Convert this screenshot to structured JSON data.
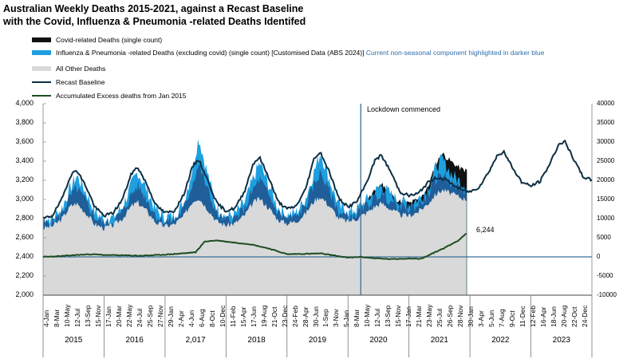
{
  "title_line1": "Australian Weekly Deaths 2015-2021, against a Recast Baseline",
  "title_line2": "with the Covid, Influenza & Pneumonia -related Deaths Identifed",
  "legend": {
    "covid": "Covid-related Deaths (single count)",
    "flu_main": "Influenza & Pneumonia -related Deaths (excluding covid) (single count) [Customised Data (ABS 2024)]",
    "flu_highlight": "Current non-seasonal component highlighted in darker blue",
    "other": "All Other Deaths",
    "baseline": "Recast Baseline",
    "excess": "Accumulated Excess deaths from Jan 2015"
  },
  "colors": {
    "covid": "#111111",
    "flu_light": "#1e9fe0",
    "flu_dark": "#1f5e99",
    "other": "#d9d9d9",
    "baseline": "#0c2e44",
    "excess": "#1e4d22",
    "lockdown_line": "#3a6f99",
    "zero_line": "#3a6f99"
  },
  "annotations": {
    "lockdown": "Lockdown commenced",
    "excess_end": "6,244"
  },
  "chart_data": {
    "type": "area",
    "y_axis": {
      "ylim": [
        2000,
        4000
      ],
      "ticks": [
        "2,000",
        "2,200",
        "2,400",
        "2,600",
        "2,800",
        "3,000",
        "3,200",
        "3,400",
        "3,600",
        "3,800",
        "4,000"
      ]
    },
    "y2_axis": {
      "ylim": [
        -10000,
        40000
      ],
      "ticks": [
        "-10000",
        "-5000",
        "0",
        "5000",
        "10000",
        "15000",
        "20000",
        "25000",
        "30000",
        "35000",
        "40000"
      ]
    },
    "x_tick_labels": [
      "4-Jan",
      "8-Mar",
      "10-May",
      "12-Jul",
      "13-Sep",
      "15-Nov",
      "17-Jan",
      "20-Mar",
      "22-May",
      "24-Jul",
      "25-Sep",
      "27-Nov",
      "29-Jan",
      "2-Apr",
      "4-Jun",
      "6-Aug",
      "8-Oct",
      "10-Dec",
      "11-Feb",
      "15-Apr",
      "17-Jun",
      "19-Aug",
      "21-Oct",
      "23-Dec",
      "24-Feb",
      "28-Apr",
      "30-Jun",
      "1-Sep",
      "3-Nov",
      "5-Jan",
      "8-Mar",
      "10-May",
      "12-Jul",
      "13-Sep",
      "15-Nov",
      "17-Jan",
      "21-Mar",
      "23-May",
      "25-Jul",
      "26-Sep",
      "28-Nov",
      "30-Jan",
      "3-Apr",
      "5-Jun",
      "7-Aug",
      "9-Oct",
      "11-Dec",
      "12-Feb",
      "16-Apr",
      "18-Jun",
      "20-Aug",
      "22-Oct",
      "24-Dec"
    ],
    "year_labels": [
      "2015",
      "2016",
      "2,017",
      "2018",
      "2019",
      "2020",
      "2021",
      "2022",
      "2023"
    ],
    "lockdown_year": 2020.21,
    "series": [
      {
        "name": "All Other Deaths",
        "kind": "area",
        "points": [
          [
            2015.0,
            2700
          ],
          [
            2015.15,
            2720
          ],
          [
            2015.3,
            2790
          ],
          [
            2015.45,
            2930
          ],
          [
            2015.55,
            2960
          ],
          [
            2015.7,
            2860
          ],
          [
            2015.85,
            2740
          ],
          [
            2016.0,
            2700
          ],
          [
            2016.15,
            2730
          ],
          [
            2016.3,
            2800
          ],
          [
            2016.45,
            2930
          ],
          [
            2016.55,
            2970
          ],
          [
            2016.7,
            2880
          ],
          [
            2016.85,
            2760
          ],
          [
            2017.0,
            2720
          ],
          [
            2017.15,
            2740
          ],
          [
            2017.3,
            2820
          ],
          [
            2017.45,
            2980
          ],
          [
            2017.55,
            3020
          ],
          [
            2017.7,
            2900
          ],
          [
            2017.85,
            2770
          ],
          [
            2018.0,
            2730
          ],
          [
            2018.15,
            2750
          ],
          [
            2018.3,
            2830
          ],
          [
            2018.45,
            2970
          ],
          [
            2018.55,
            3010
          ],
          [
            2018.7,
            2910
          ],
          [
            2018.85,
            2790
          ],
          [
            2019.0,
            2750
          ],
          [
            2019.15,
            2770
          ],
          [
            2019.3,
            2850
          ],
          [
            2019.45,
            2990
          ],
          [
            2019.55,
            3030
          ],
          [
            2019.7,
            2930
          ],
          [
            2019.85,
            2800
          ],
          [
            2020.0,
            2770
          ],
          [
            2020.15,
            2800
          ],
          [
            2020.3,
            2860
          ],
          [
            2020.45,
            2930
          ],
          [
            2020.55,
            2960
          ],
          [
            2020.7,
            2900
          ],
          [
            2020.85,
            2840
          ],
          [
            2021.0,
            2830
          ],
          [
            2021.15,
            2870
          ],
          [
            2021.3,
            2950
          ],
          [
            2021.45,
            3060
          ],
          [
            2021.55,
            3100
          ],
          [
            2021.7,
            3060
          ],
          [
            2021.85,
            3020
          ],
          [
            2021.95,
            3000
          ]
        ]
      },
      {
        "name": "Influenza & Pneumonia -related Deaths (excluding covid) (single count)",
        "kind": "area",
        "points": [
          [
            2015.0,
            2790
          ],
          [
            2015.15,
            2800
          ],
          [
            2015.3,
            2900
          ],
          [
            2015.45,
            3120
          ],
          [
            2015.55,
            3250
          ],
          [
            2015.7,
            3080
          ],
          [
            2015.85,
            2870
          ],
          [
            2016.0,
            2790
          ],
          [
            2016.15,
            2810
          ],
          [
            2016.3,
            2920
          ],
          [
            2016.45,
            3150
          ],
          [
            2016.55,
            3290
          ],
          [
            2016.7,
            3100
          ],
          [
            2016.85,
            2890
          ],
          [
            2017.0,
            2810
          ],
          [
            2017.15,
            2830
          ],
          [
            2017.3,
            2950
          ],
          [
            2017.45,
            3320
          ],
          [
            2017.55,
            3650
          ],
          [
            2017.7,
            3260
          ],
          [
            2017.85,
            2900
          ],
          [
            2018.0,
            2820
          ],
          [
            2018.15,
            2850
          ],
          [
            2018.3,
            2960
          ],
          [
            2018.45,
            3220
          ],
          [
            2018.55,
            3380
          ],
          [
            2018.7,
            3150
          ],
          [
            2018.85,
            2920
          ],
          [
            2019.0,
            2840
          ],
          [
            2019.15,
            2860
          ],
          [
            2019.3,
            3000
          ],
          [
            2019.45,
            3300
          ],
          [
            2019.55,
            3490
          ],
          [
            2019.7,
            3200
          ],
          [
            2019.85,
            2930
          ],
          [
            2020.0,
            2860
          ],
          [
            2020.15,
            2900
          ],
          [
            2020.3,
            2990
          ],
          [
            2020.45,
            3080
          ],
          [
            2020.55,
            3150
          ],
          [
            2020.7,
            3050
          ],
          [
            2020.85,
            2980
          ],
          [
            2021.0,
            2960
          ],
          [
            2021.15,
            3000
          ],
          [
            2021.3,
            3100
          ],
          [
            2021.45,
            3350
          ],
          [
            2021.55,
            3420
          ],
          [
            2021.7,
            3260
          ],
          [
            2021.85,
            3180
          ],
          [
            2021.95,
            3150
          ]
        ]
      },
      {
        "name": "Covid-related Deaths (single count)",
        "kind": "area",
        "points": [
          [
            2015.0,
            2790
          ],
          [
            2020.2,
            2860
          ],
          [
            2020.3,
            2990
          ],
          [
            2020.45,
            3090
          ],
          [
            2020.55,
            3170
          ],
          [
            2020.7,
            3050
          ],
          [
            2020.85,
            2980
          ],
          [
            2021.0,
            2960
          ],
          [
            2021.15,
            3000
          ],
          [
            2021.3,
            3110
          ],
          [
            2021.45,
            3380
          ],
          [
            2021.55,
            3480
          ],
          [
            2021.7,
            3390
          ],
          [
            2021.85,
            3320
          ],
          [
            2021.95,
            3300
          ]
        ]
      },
      {
        "name": "Recast Baseline",
        "kind": "line",
        "points": [
          [
            2015.0,
            2800
          ],
          [
            2015.15,
            2830
          ],
          [
            2015.3,
            2990
          ],
          [
            2015.45,
            3250
          ],
          [
            2015.55,
            3310
          ],
          [
            2015.7,
            3140
          ],
          [
            2015.85,
            2920
          ],
          [
            2016.0,
            2830
          ],
          [
            2016.15,
            2860
          ],
          [
            2016.3,
            3000
          ],
          [
            2016.45,
            3270
          ],
          [
            2016.55,
            3340
          ],
          [
            2016.7,
            3160
          ],
          [
            2016.85,
            2940
          ],
          [
            2017.0,
            2860
          ],
          [
            2017.15,
            2880
          ],
          [
            2017.3,
            3040
          ],
          [
            2017.45,
            3340
          ],
          [
            2017.55,
            3420
          ],
          [
            2017.7,
            3200
          ],
          [
            2017.85,
            2960
          ],
          [
            2018.0,
            2880
          ],
          [
            2018.15,
            2910
          ],
          [
            2018.3,
            3080
          ],
          [
            2018.45,
            3380
          ],
          [
            2018.55,
            3440
          ],
          [
            2018.7,
            3230
          ],
          [
            2018.85,
            2980
          ],
          [
            2019.0,
            2900
          ],
          [
            2019.15,
            2930
          ],
          [
            2019.3,
            3100
          ],
          [
            2019.45,
            3440
          ],
          [
            2019.55,
            3490
          ],
          [
            2019.7,
            3280
          ],
          [
            2019.85,
            3010
          ],
          [
            2020.0,
            2920
          ],
          [
            2020.15,
            2980
          ],
          [
            2020.3,
            3170
          ],
          [
            2020.45,
            3420
          ],
          [
            2020.55,
            3460
          ],
          [
            2020.7,
            3290
          ],
          [
            2020.85,
            3080
          ],
          [
            2021.0,
            3040
          ],
          [
            2021.15,
            3060
          ],
          [
            2021.3,
            3170
          ],
          [
            2021.45,
            3230
          ],
          [
            2021.6,
            3210
          ],
          [
            2021.75,
            3140
          ],
          [
            2021.9,
            3090
          ],
          [
            2022.0,
            3080
          ],
          [
            2022.15,
            3130
          ],
          [
            2022.3,
            3280
          ],
          [
            2022.45,
            3460
          ],
          [
            2022.55,
            3500
          ],
          [
            2022.7,
            3330
          ],
          [
            2022.85,
            3180
          ],
          [
            2023.0,
            3140
          ],
          [
            2023.15,
            3190
          ],
          [
            2023.3,
            3360
          ],
          [
            2023.45,
            3570
          ],
          [
            2023.55,
            3610
          ],
          [
            2023.7,
            3420
          ],
          [
            2023.85,
            3240
          ],
          [
            2024.0,
            3200
          ]
        ]
      },
      {
        "name": "Accumulated Excess deaths from Jan 2015",
        "kind": "line",
        "axis": "y2",
        "points": [
          [
            2015.0,
            0
          ],
          [
            2015.3,
            200
          ],
          [
            2015.55,
            500
          ],
          [
            2015.8,
            700
          ],
          [
            2016.0,
            500
          ],
          [
            2016.3,
            400
          ],
          [
            2016.6,
            300
          ],
          [
            2016.9,
            500
          ],
          [
            2017.2,
            800
          ],
          [
            2017.5,
            1200
          ],
          [
            2017.65,
            4000
          ],
          [
            2017.85,
            4300
          ],
          [
            2018.1,
            3800
          ],
          [
            2018.4,
            3300
          ],
          [
            2018.7,
            2200
          ],
          [
            2019.0,
            700
          ],
          [
            2019.3,
            800
          ],
          [
            2019.55,
            900
          ],
          [
            2019.8,
            300
          ],
          [
            2020.0,
            -200
          ],
          [
            2020.2,
            0
          ],
          [
            2020.4,
            -300
          ],
          [
            2020.7,
            -600
          ],
          [
            2021.0,
            -400
          ],
          [
            2021.2,
            -500
          ],
          [
            2021.4,
            1000
          ],
          [
            2021.6,
            2500
          ],
          [
            2021.8,
            4200
          ],
          [
            2021.95,
            6244
          ]
        ]
      }
    ]
  }
}
